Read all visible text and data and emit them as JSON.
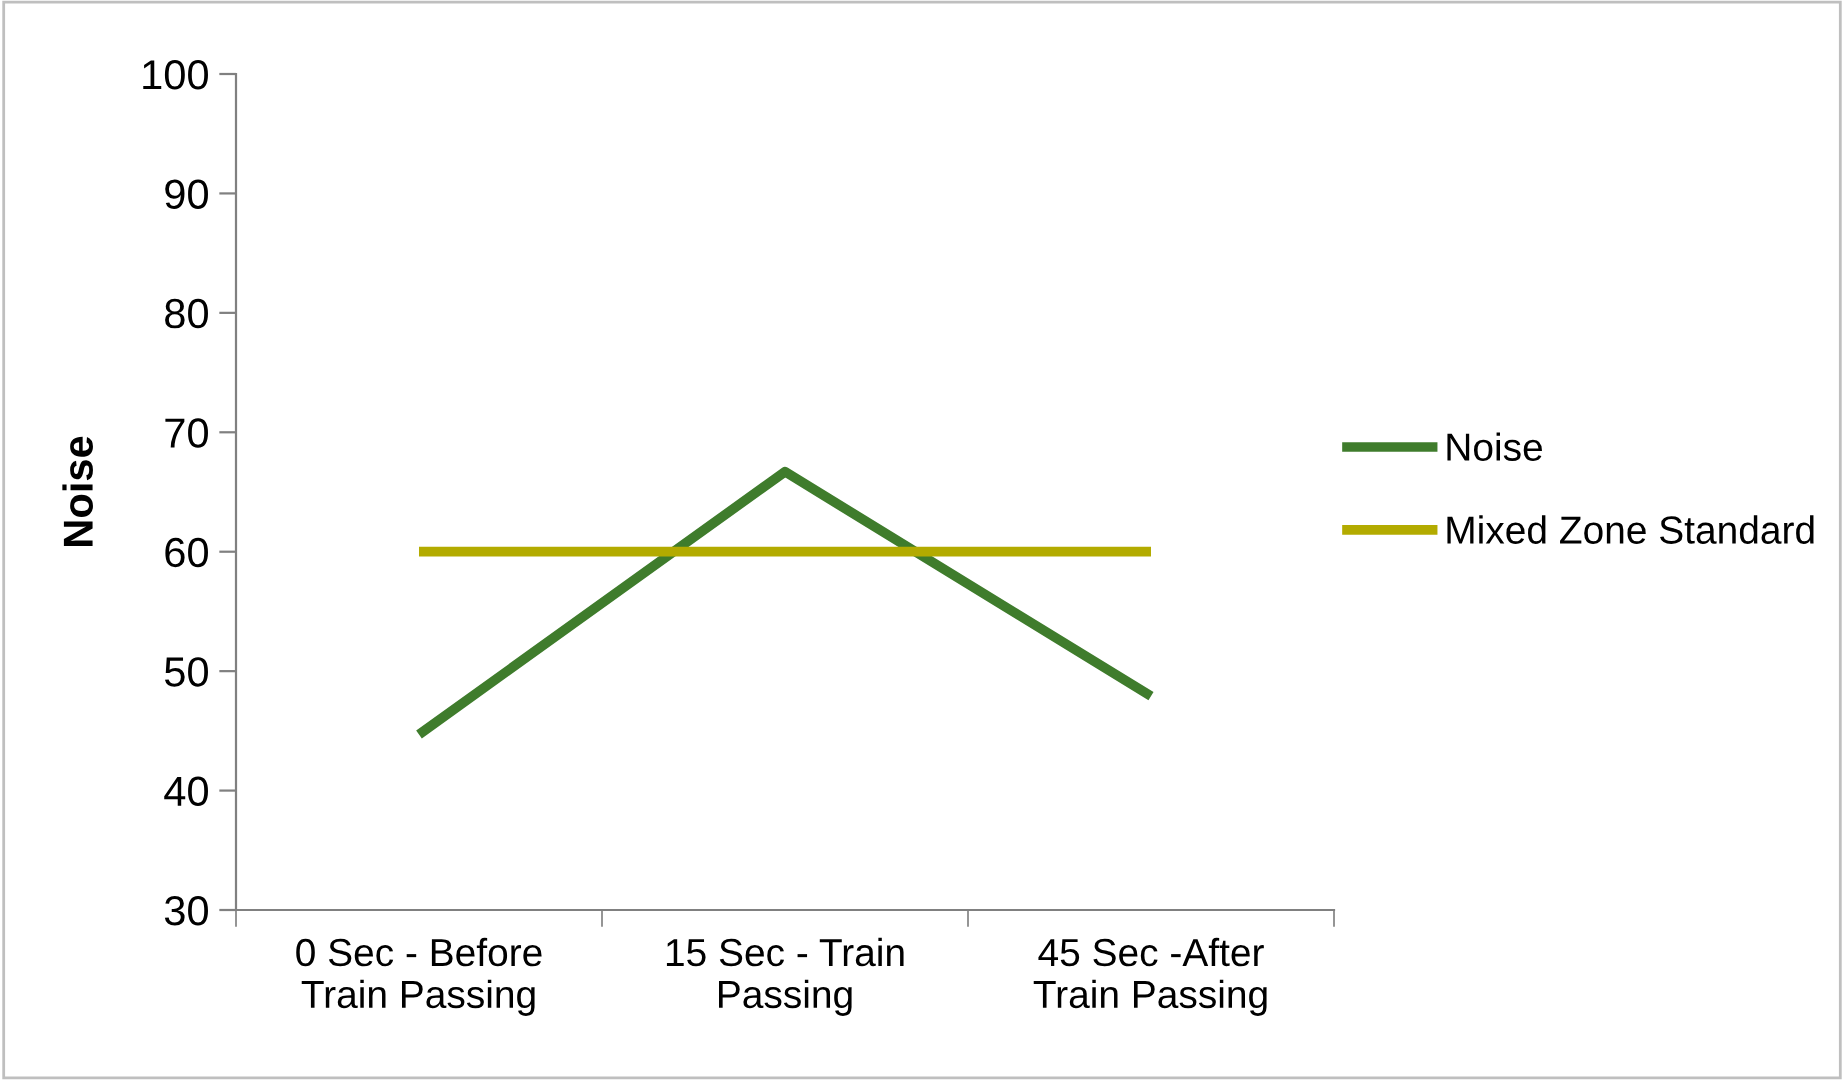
{
  "chart_data": {
    "type": "line",
    "ylabel": "Noise",
    "categories": [
      "0 Sec - Before Train Passing",
      "15 Sec - Train Passing",
      "45 Sec -After Train Passing"
    ],
    "series": [
      {
        "name": "Noise",
        "color": "#3f7c2c",
        "values": [
          44.7,
          66.7,
          47.9
        ]
      },
      {
        "name": "Mixed Zone Standard",
        "color": "#b3ab00",
        "values": [
          60,
          60,
          60
        ]
      }
    ],
    "ylim": [
      30,
      100
    ],
    "yticks": [
      30,
      40,
      50,
      60,
      70,
      80,
      90,
      100
    ],
    "grid": false,
    "legend": "right",
    "marker": "none",
    "line_style": "solid"
  }
}
